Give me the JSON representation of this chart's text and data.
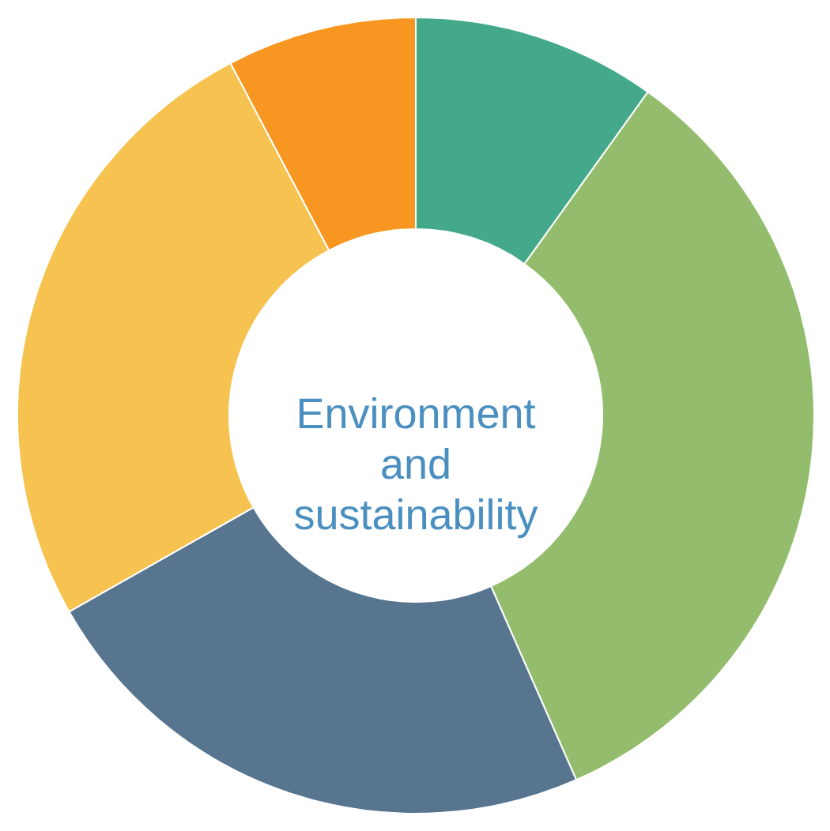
{
  "chart_data": {
    "type": "donut",
    "title": "Environment and sustainability",
    "categories": [
      null,
      null,
      null,
      null,
      null
    ],
    "values": [
      9.9,
      33.5,
      23.4,
      25.5,
      7.7
    ],
    "colors": [
      "#43a98a",
      "#93bd6c",
      "#57758f",
      "#f6c350",
      "#f79722"
    ]
  }
}
